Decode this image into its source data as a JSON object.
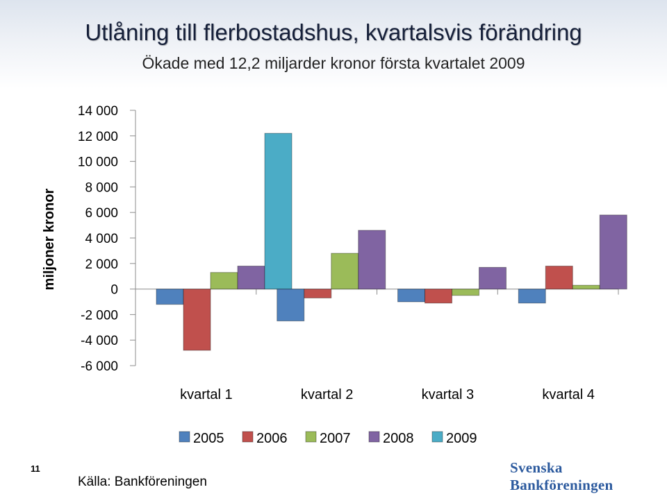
{
  "slide": {
    "number": "11",
    "source": "Källa: Bankföreningen",
    "logo_text": "Svenska Bankföreningen"
  },
  "colors": {
    "2005": "#4f81bd",
    "2006": "#c0504d",
    "2007": "#9bbb59",
    "2008": "#8064a2",
    "2009": "#4bacc6"
  },
  "chart_data": {
    "type": "bar",
    "title": "Utlåning till flerbostadshus, kvartalsvis förändring",
    "subtitle": "Ökade med 12,2 miljarder kronor första kvartalet 2009",
    "xlabel": "",
    "ylabel": "miljoner kronor",
    "ylim": [
      -6000,
      14000
    ],
    "yticks": [
      14000,
      12000,
      10000,
      8000,
      6000,
      4000,
      2000,
      0,
      -2000,
      -4000,
      -6000
    ],
    "ytick_labels": [
      "14 000",
      "12 000",
      "10 000",
      "8 000",
      "6 000",
      "4 000",
      "2 000",
      "0",
      "-2 000",
      "-4 000",
      "-6 000"
    ],
    "categories": [
      "kvartal 1",
      "kvartal 2",
      "kvartal 3",
      "kvartal 4"
    ],
    "series": [
      {
        "name": "2005",
        "values": [
          -1200,
          -2500,
          -1000,
          -1100
        ]
      },
      {
        "name": "2006",
        "values": [
          -4800,
          -700,
          -1100,
          1800
        ]
      },
      {
        "name": "2007",
        "values": [
          1300,
          2800,
          -500,
          300
        ]
      },
      {
        "name": "2008",
        "values": [
          1800,
          4600,
          1700,
          5800
        ]
      },
      {
        "name": "2009",
        "values": [
          12200,
          null,
          null,
          null
        ]
      }
    ],
    "grid": false,
    "legend": "bottom"
  }
}
